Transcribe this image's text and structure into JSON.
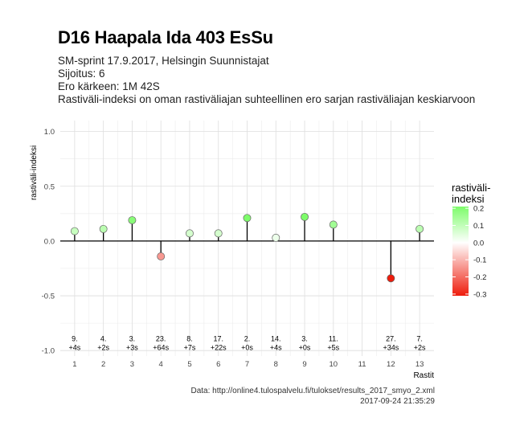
{
  "title": "D16 Haapala Ida 403 EsSu",
  "subtitle_lines": [
    "SM-sprint 17.9.2017, Helsingin Suunnistajat",
    "Sijoitus: 6",
    "Ero kärkeen: 1M 42S",
    "Rastiväli-indeksi on oman rastiväliajan suhteellinen ero sarjan rastiväliajan keskiarvoon"
  ],
  "caption": {
    "source": "Data: http://online4.tulospalvelu.fi/tulokset/results_2017_smyo_2.xml",
    "timestamp": "2017-09-24 21:35:29"
  },
  "chart_data": {
    "type": "scatter",
    "title": "D16 Haapala Ida 403 EsSu",
    "xlabel": "Rastit",
    "ylabel": "rastiväli-indeksi",
    "xlim": [
      0.5,
      13.5
    ],
    "ylim": [
      -1.05,
      1.1
    ],
    "x_ticks": [
      1,
      2,
      3,
      4,
      5,
      6,
      7,
      8,
      9,
      10,
      11,
      12,
      13
    ],
    "y_ticks": [
      -1.0,
      -0.5,
      0.0,
      0.5,
      1.0
    ],
    "y_tick_labels": [
      "-1.0",
      "-0.5",
      "0.0",
      "0.5",
      "1.0"
    ],
    "grid": true,
    "points": [
      {
        "x": 1,
        "y": 0.09,
        "rank": "9.",
        "diff": "+4s"
      },
      {
        "x": 2,
        "y": 0.11,
        "rank": "4.",
        "diff": "+2s"
      },
      {
        "x": 3,
        "y": 0.19,
        "rank": "3.",
        "diff": "+3s"
      },
      {
        "x": 4,
        "y": -0.14,
        "rank": "23.",
        "diff": "+64s"
      },
      {
        "x": 5,
        "y": 0.07,
        "rank": "8.",
        "diff": "+7s"
      },
      {
        "x": 6,
        "y": 0.07,
        "rank": "17.",
        "diff": "+22s"
      },
      {
        "x": 7,
        "y": 0.21,
        "rank": "2.",
        "diff": "+0s"
      },
      {
        "x": 8,
        "y": 0.03,
        "rank": "14.",
        "diff": "+4s"
      },
      {
        "x": 9,
        "y": 0.22,
        "rank": "3.",
        "diff": "+0s"
      },
      {
        "x": 10,
        "y": 0.15,
        "rank": "11.",
        "diff": "+5s"
      },
      {
        "x": 12,
        "y": -0.34,
        "rank": "27.",
        "diff": "+34s"
      },
      {
        "x": 13,
        "y": 0.11,
        "rank": "7.",
        "diff": "+2s"
      }
    ],
    "label_y": -0.93,
    "legend": {
      "title": "rastiväli-\nindeksi",
      "placement": "right",
      "ticks": [
        0.2,
        0.1,
        0.0,
        -0.1,
        -0.2,
        -0.3
      ],
      "tick_labels": [
        "0.2",
        "0.1",
        "0.0",
        "-0.1",
        "-0.2",
        "-0.3"
      ],
      "range": [
        -0.31,
        0.21
      ],
      "color_high": "#7dfc6a",
      "color_mid": "#ffffff",
      "color_low": "#ee1c0c"
    }
  }
}
